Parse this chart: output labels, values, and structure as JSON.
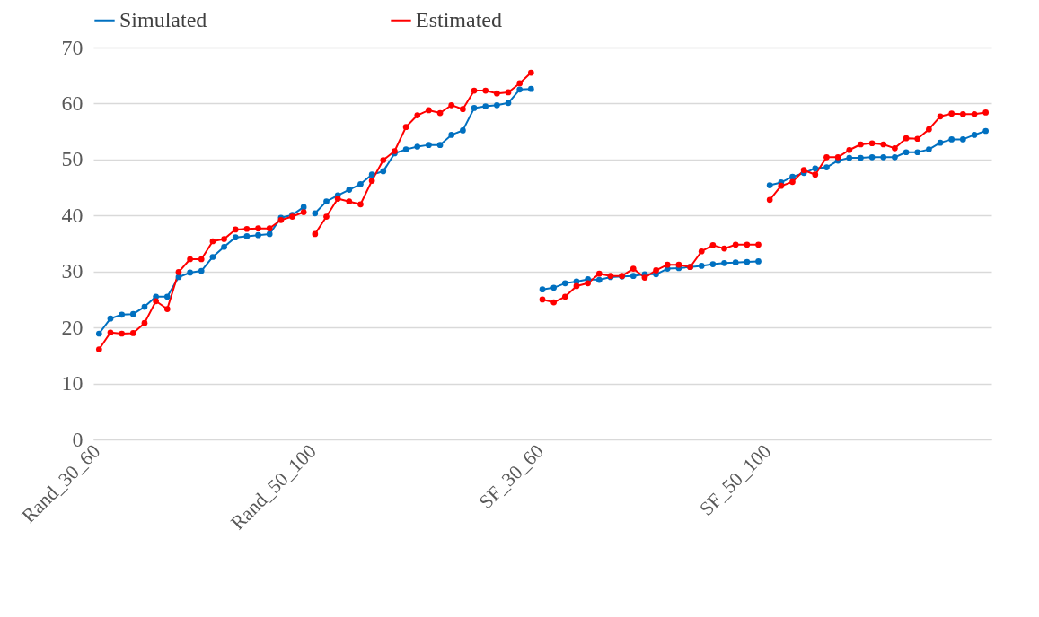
{
  "chart_data": {
    "type": "line",
    "categories": [
      "Rand_30_60",
      null,
      null,
      null,
      null,
      null,
      null,
      null,
      null,
      null,
      null,
      null,
      null,
      null,
      null,
      null,
      null,
      null,
      null,
      "Rand_50_100",
      null,
      null,
      null,
      null,
      null,
      null,
      null,
      null,
      null,
      null,
      null,
      null,
      null,
      null,
      null,
      null,
      null,
      null,
      null,
      "SF_30_60",
      null,
      null,
      null,
      null,
      null,
      null,
      null,
      null,
      null,
      null,
      null,
      null,
      null,
      null,
      null,
      null,
      null,
      null,
      null,
      "SF_50_100",
      null,
      null,
      null,
      null,
      null,
      null,
      null,
      null,
      null,
      null,
      null,
      null,
      null,
      null,
      null,
      null,
      null,
      null,
      null
    ],
    "series": [
      {
        "name": "Simulated",
        "color": "#0070c0",
        "values": [
          18.9,
          21.6,
          22.3,
          22.4,
          23.7,
          25.5,
          25.5,
          29.0,
          29.8,
          30.1,
          32.6,
          34.4,
          36.1,
          36.3,
          36.5,
          36.7,
          39.6,
          40.1,
          41.5,
          40.4,
          42.5,
          43.6,
          44.6,
          45.6,
          47.3,
          47.9,
          51.1,
          51.8,
          52.3,
          52.6,
          52.6,
          54.4,
          55.2,
          59.2,
          59.5,
          59.7,
          60.1,
          62.5,
          62.6,
          26.8,
          27.1,
          27.9,
          28.2,
          28.6,
          28.5,
          29.0,
          29.1,
          29.2,
          29.5,
          29.5,
          30.5,
          30.6,
          30.8,
          31.0,
          31.3,
          31.5,
          31.6,
          31.7,
          31.8,
          45.4,
          45.9,
          46.9,
          47.6,
          48.4,
          48.6,
          49.8,
          50.3,
          50.3,
          50.4,
          50.4,
          50.4,
          51.3,
          51.3,
          51.8,
          53.0,
          53.6,
          53.6,
          54.4,
          55.1
        ]
      },
      {
        "name": "Estimated",
        "color": "#ff0000",
        "values": [
          16.1,
          19.1,
          18.9,
          19.0,
          20.8,
          24.7,
          23.3,
          29.9,
          32.2,
          32.2,
          35.4,
          35.8,
          37.5,
          37.6,
          37.7,
          37.7,
          39.2,
          39.8,
          40.6,
          36.7,
          39.8,
          43.0,
          42.5,
          42.0,
          46.2,
          49.9,
          51.5,
          55.8,
          57.9,
          58.8,
          58.3,
          59.7,
          59.0,
          62.3,
          62.3,
          61.8,
          62.0,
          63.6,
          65.5,
          25.0,
          24.5,
          25.5,
          27.4,
          27.9,
          29.6,
          29.2,
          29.2,
          30.5,
          28.9,
          30.2,
          31.2,
          31.2,
          30.8,
          33.6,
          34.7,
          34.1,
          34.8,
          34.8,
          34.8,
          42.8,
          45.3,
          46.0,
          48.1,
          47.3,
          50.4,
          50.4,
          51.7,
          52.7,
          52.9,
          52.7,
          52.0,
          53.8,
          53.7,
          55.4,
          57.7,
          58.2,
          58.1,
          58.1,
          58.4
        ]
      }
    ],
    "ylim": [
      0,
      70
    ],
    "yticks": [
      0,
      10,
      20,
      30,
      40,
      50,
      60,
      70
    ],
    "grid": "y",
    "legend": "top",
    "marker": "circle",
    "line_style": "solid"
  }
}
